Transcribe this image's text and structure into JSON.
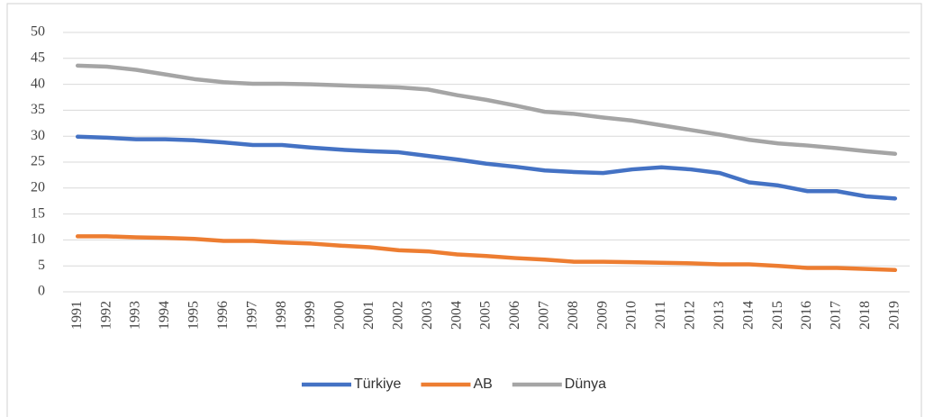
{
  "chart_data": {
    "type": "line",
    "categories": [
      "1991",
      "1992",
      "1993",
      "1994",
      "1995",
      "1996",
      "1997",
      "1998",
      "1999",
      "2000",
      "2001",
      "2002",
      "2003",
      "2004",
      "2005",
      "2006",
      "2007",
      "2008",
      "2009",
      "2010",
      "2011",
      "2012",
      "2013",
      "2014",
      "2015",
      "2016",
      "2017",
      "2018",
      "2019"
    ],
    "series": [
      {
        "name": "Türkiye",
        "color": "#4472c4",
        "values": [
          29.9,
          29.7,
          29.4,
          29.4,
          29.2,
          28.8,
          28.3,
          28.3,
          27.8,
          27.4,
          27.1,
          26.9,
          26.2,
          25.5,
          24.7,
          24.1,
          23.4,
          23.1,
          22.9,
          23.6,
          24.0,
          23.6,
          22.9,
          21.1,
          20.5,
          19.4,
          19.4,
          18.4,
          18.0
        ]
      },
      {
        "name": "AB",
        "color": "#ed7d31",
        "values": [
          10.7,
          10.7,
          10.5,
          10.4,
          10.2,
          9.8,
          9.8,
          9.5,
          9.3,
          8.9,
          8.6,
          8.0,
          7.8,
          7.2,
          6.9,
          6.5,
          6.2,
          5.8,
          5.8,
          5.7,
          5.6,
          5.5,
          5.3,
          5.3,
          5.0,
          4.6,
          4.6,
          4.4,
          4.2
        ]
      },
      {
        "name": "Dünya",
        "color": "#a5a5a5",
        "values": [
          43.6,
          43.4,
          42.8,
          41.9,
          41.0,
          40.4,
          40.1,
          40.1,
          40.0,
          39.8,
          39.6,
          39.4,
          39.0,
          37.9,
          37.0,
          35.9,
          34.7,
          34.3,
          33.6,
          33.0,
          32.1,
          31.2,
          30.3,
          29.3,
          28.6,
          28.2,
          27.7,
          27.1,
          26.6
        ]
      }
    ],
    "ylim": [
      0,
      50
    ],
    "yticks": [
      0,
      5,
      10,
      15,
      20,
      25,
      30,
      35,
      40,
      45,
      50
    ],
    "grid": true,
    "legend": "bottom"
  }
}
